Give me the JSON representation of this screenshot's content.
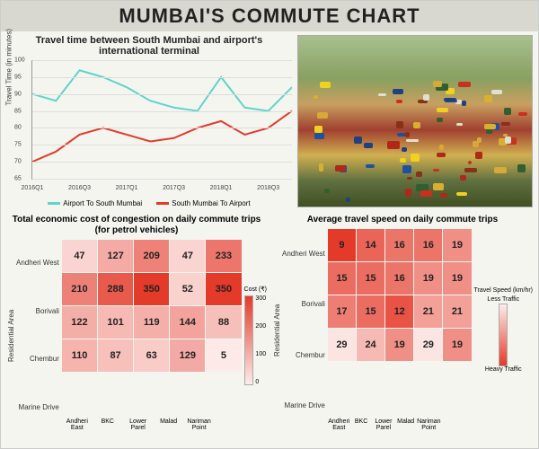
{
  "title": "MUMBAI'S COMMUTE CHART",
  "line_chart": {
    "type": "line",
    "title": "Travel time between South Mumbai and airport's international terminal",
    "ylabel": "Travel Time (in minutes)",
    "ylim": [
      65,
      100
    ],
    "yticks": [
      65,
      70,
      75,
      80,
      85,
      90,
      95,
      100
    ],
    "xcats": [
      "2016Q1",
      "",
      "2016Q3",
      "",
      "2017Q1",
      "",
      "2017Q3",
      "",
      "2018Q1",
      "",
      "2018Q3",
      ""
    ],
    "xlabels_show": [
      "2016Q1",
      "2016Q3",
      "2017Q1",
      "2017Q3",
      "2018Q1",
      "2018Q3"
    ],
    "series": [
      {
        "name": "Airport To South Mumbai",
        "color": "#5fd4c8",
        "values": [
          90,
          88,
          97,
          95,
          92,
          88,
          86,
          85,
          95,
          86,
          85,
          92
        ]
      },
      {
        "name": "South Mumbai To Airport",
        "color": "#e43a2a",
        "values": [
          70,
          73,
          78,
          80,
          78,
          76,
          77,
          80,
          82,
          78,
          80,
          85
        ]
      }
    ],
    "grid_color": "#dddddd",
    "line_width": 2
  },
  "heatmap_cost": {
    "type": "heatmap",
    "title": "Total economic cost of congestion on daily commute trips (for petrol vehicles)",
    "ylabel": "Residential Area",
    "rows": [
      "Andheri West",
      "Borivali",
      "Chembur",
      "Marine Drive"
    ],
    "cols": [
      "Andheri East",
      "BKC",
      "Lower Parel",
      "Malad",
      "Nariman Point"
    ],
    "values": [
      [
        47,
        127,
        209,
        47,
        233
      ],
      [
        210,
        288,
        350,
        52,
        350
      ],
      [
        122,
        101,
        119,
        144,
        88
      ],
      [
        110,
        87,
        63,
        129,
        5
      ]
    ],
    "legend_title": "Cost (₹)",
    "legend_ticks": [
      300,
      200,
      100,
      0
    ],
    "color_low": "#fdeceb",
    "color_high": "#e43a2a",
    "vmin": 0,
    "vmax": 350
  },
  "heatmap_speed": {
    "type": "heatmap",
    "title": "Average travel speed on daily commute trips",
    "ylabel": "Residential Area",
    "rows": [
      "Andheri West",
      "Borivali",
      "Chembur",
      "Marine Drive"
    ],
    "cols": [
      "Andheri East",
      "BKC",
      "Lower Parel",
      "Malad",
      "Nariman Point"
    ],
    "values": [
      [
        9,
        14,
        16,
        16,
        19
      ],
      [
        15,
        15,
        16,
        19,
        19
      ],
      [
        17,
        15,
        12,
        21,
        21
      ],
      [
        29,
        24,
        19,
        29,
        19
      ]
    ],
    "legend_title": "Travel Speed (km/hr)",
    "legend_top": "Less Traffic",
    "legend_bottom": "Heavy Traffic",
    "color_low": "#fdeceb",
    "color_high": "#e43a2a",
    "vmin": 9,
    "vmax": 30,
    "invert": true
  },
  "traffic_colors": [
    "#c83020",
    "#d8b030",
    "#2050a0",
    "#e0e0d0",
    "#883018",
    "#f0d020",
    "#306030",
    "#b02818",
    "#d8a838",
    "#204080"
  ]
}
